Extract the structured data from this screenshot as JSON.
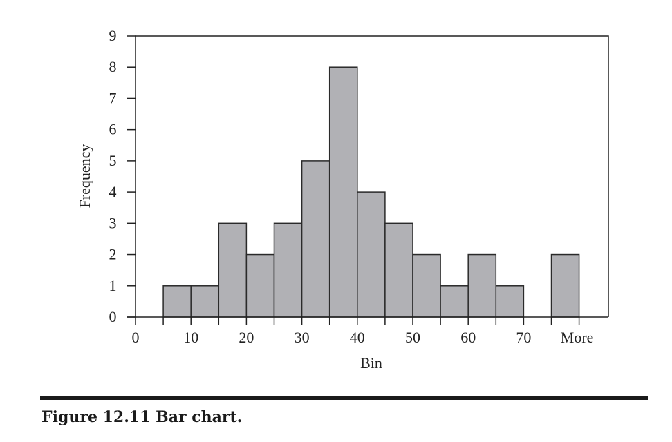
{
  "caption": "Figure 12.11 Bar chart.",
  "chart_data": {
    "type": "bar",
    "title": "",
    "xlabel": "Bin",
    "ylabel": "Frequency",
    "ylim": [
      0,
      9
    ],
    "y_ticks": [
      "0",
      "1",
      "2",
      "3",
      "4",
      "5",
      "6",
      "7",
      "8",
      "9"
    ],
    "x_tick_labels": [
      "0",
      "10",
      "20",
      "30",
      "40",
      "50",
      "60",
      "70",
      "More"
    ],
    "bins": [
      {
        "from": 5,
        "to": 10,
        "value": 1
      },
      {
        "from": 10,
        "to": 15,
        "value": 1
      },
      {
        "from": 15,
        "to": 20,
        "value": 3
      },
      {
        "from": 20,
        "to": 25,
        "value": 2
      },
      {
        "from": 25,
        "to": 30,
        "value": 3
      },
      {
        "from": 30,
        "to": 35,
        "value": 5
      },
      {
        "from": 35,
        "to": 40,
        "value": 8
      },
      {
        "from": 40,
        "to": 45,
        "value": 4
      },
      {
        "from": 45,
        "to": 50,
        "value": 3
      },
      {
        "from": 50,
        "to": 55,
        "value": 2
      },
      {
        "from": 55,
        "to": 60,
        "value": 1
      },
      {
        "from": 60,
        "to": 65,
        "value": 2
      },
      {
        "from": 65,
        "to": 70,
        "value": 1
      },
      {
        "from": 70,
        "to": 75,
        "value": 0
      },
      {
        "from": 75,
        "to": "More",
        "value": 2
      }
    ],
    "grid": false,
    "legend": "none",
    "colors": {
      "bar_fill": "#b1b1b5",
      "bar_stroke": "#2a2a2a",
      "axis": "#222222"
    }
  }
}
